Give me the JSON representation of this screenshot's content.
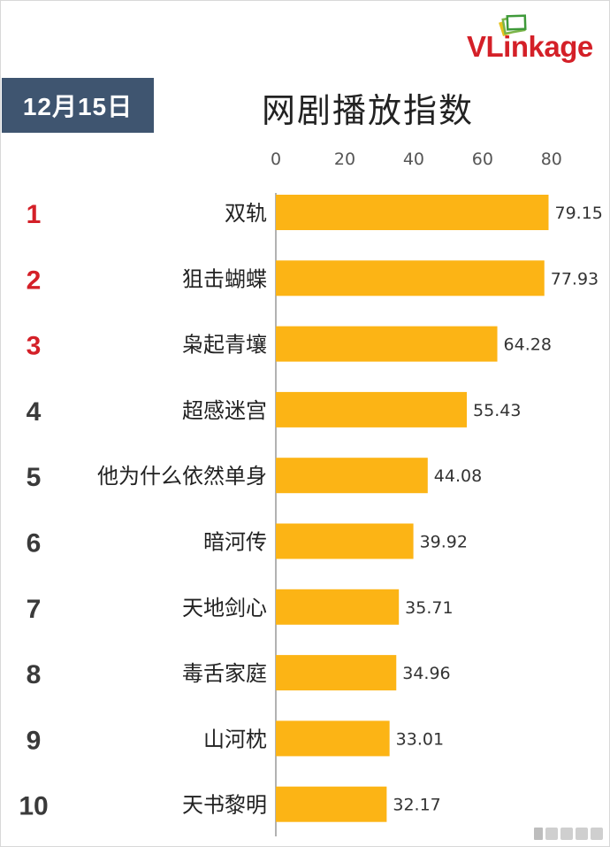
{
  "header": {
    "date_badge": "12月15日",
    "title": "网剧播放指数",
    "logo_text_part1": "VLink",
    "logo_text_part2": "age"
  },
  "colors": {
    "bar": "#fcb415",
    "badge_bg": "#3f5570",
    "rank_top": "#d42028",
    "rank_other": "#3a3a3a",
    "axis": "#999999"
  },
  "chart_data": {
    "type": "bar",
    "orientation": "horizontal",
    "title": "网剧播放指数",
    "xlim": [
      0,
      90
    ],
    "xticks": [
      0,
      20,
      40,
      60,
      80
    ],
    "tick_position": "top",
    "grid": false,
    "ranks": [
      "1",
      "2",
      "3",
      "4",
      "5",
      "6",
      "7",
      "8",
      "9",
      "10"
    ],
    "categories": [
      "双轨",
      "狙击蝴蝶",
      "枭起青壤",
      "超感迷宫",
      "他为什么依然单身",
      "暗河传",
      "天地剑心",
      "毒舌家庭",
      "山河枕",
      "天书黎明"
    ],
    "values": [
      79.15,
      77.93,
      64.28,
      55.43,
      44.08,
      39.92,
      35.71,
      34.96,
      33.01,
      32.17
    ],
    "value_labels": [
      "79.15",
      "77.93",
      "64.28",
      "55.43",
      "44.08",
      "39.92",
      "35.71",
      "34.96",
      "33.01",
      "32.17"
    ]
  }
}
